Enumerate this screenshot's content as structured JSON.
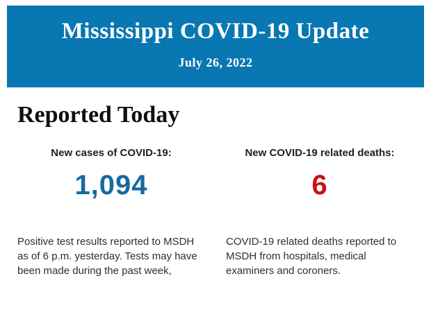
{
  "header": {
    "title": "Mississippi COVID-19 Update",
    "date": "July 26, 2022",
    "background_color": "#0877b2",
    "text_color": "#ffffff"
  },
  "section": {
    "heading": "Reported Today"
  },
  "stats": [
    {
      "label": "New cases of COVID-19:",
      "value": "1,094",
      "value_color": "#17699f",
      "description": "Positive test results reported to MSDH as of 6 p.m. yesterday. Tests may have been made during the past week,"
    },
    {
      "label": "New COVID-19 related deaths:",
      "value": "6",
      "value_color": "#c90f16",
      "description": "COVID-19 related deaths reported to MSDH from hospitals, medical examiners and coroners."
    }
  ]
}
